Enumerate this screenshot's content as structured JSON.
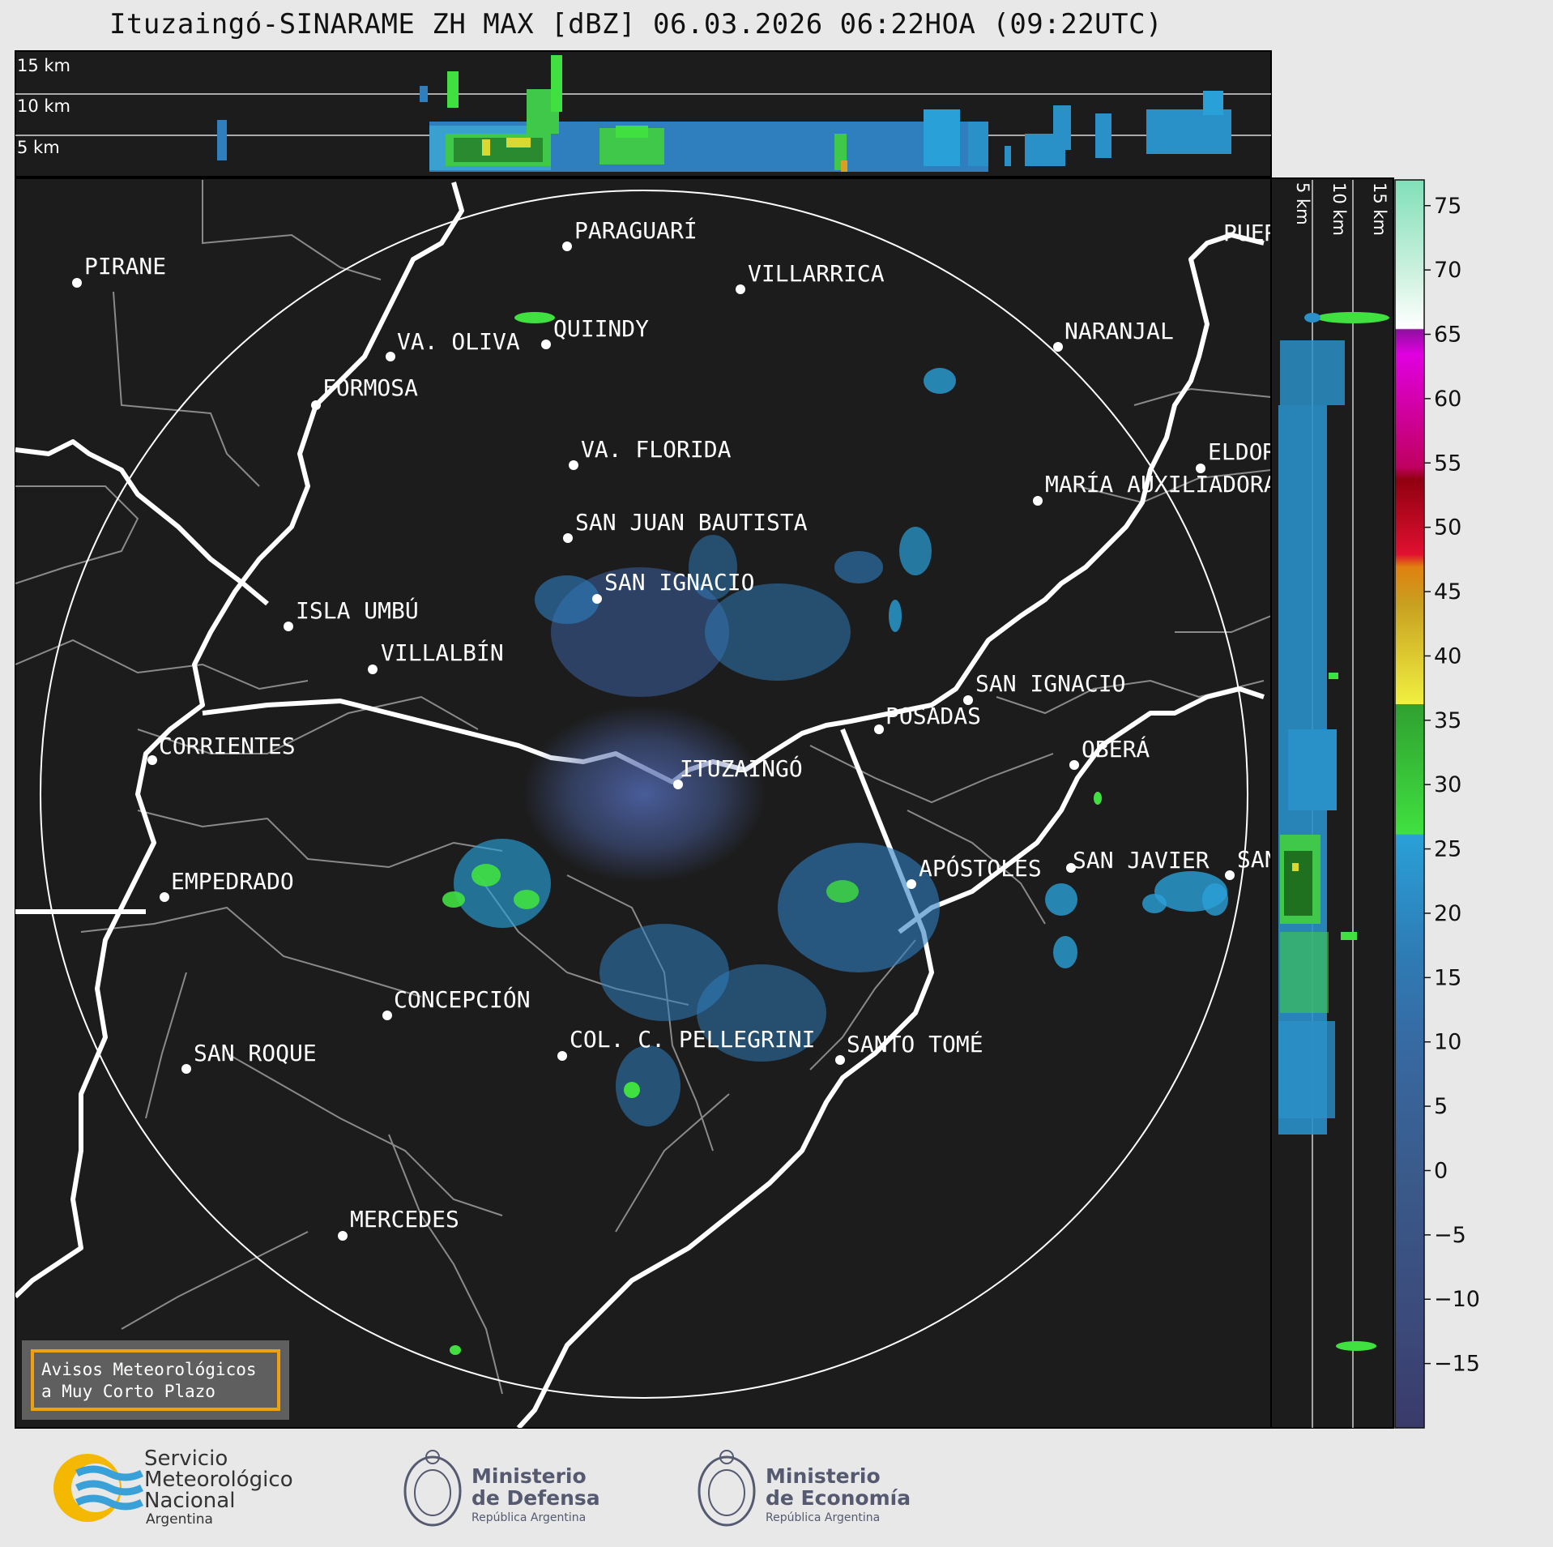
{
  "title": "Ituzaingó-SINARAME ZH MAX [dBZ] 06.03.2026 06:22HOA (09:22UTC)",
  "top_profile": {
    "height_labels": [
      "15 km",
      "10 km",
      "5 km"
    ]
  },
  "side_profile": {
    "height_labels": [
      "5 km",
      "10 km",
      "15 km"
    ]
  },
  "cities": [
    {
      "name": "PIRANE"
    },
    {
      "name": "PARAGUARÍ"
    },
    {
      "name": "VILLARRICA"
    },
    {
      "name": "QUIINDY"
    },
    {
      "name": "VA. OLIVA"
    },
    {
      "name": "NARANJAL"
    },
    {
      "name": "FORMOSA"
    },
    {
      "name": "VA. FLORIDA"
    },
    {
      "name": "ELDORADO"
    },
    {
      "name": "MARÍA AUXILIADORA"
    },
    {
      "name": "SAN JUAN BAUTISTA"
    },
    {
      "name": "SAN IGNACIO"
    },
    {
      "name": "ISLA UMBÚ"
    },
    {
      "name": "VILLALBÍN"
    },
    {
      "name": "SAN IGNACIO"
    },
    {
      "name": "POSADAS"
    },
    {
      "name": "CORRIENTES"
    },
    {
      "name": "ITUZAINGÓ"
    },
    {
      "name": "OBERÁ"
    },
    {
      "name": "APÓSTOLES"
    },
    {
      "name": "SAN JAVIER"
    },
    {
      "name": "SAN"
    },
    {
      "name": "EMPEDRADO"
    },
    {
      "name": "CONCEPCIÓN"
    },
    {
      "name": "COL. C. PELLEGRINI"
    },
    {
      "name": "SANTO TOMÉ"
    },
    {
      "name": "SAN ROQUE"
    },
    {
      "name": "MERCEDES"
    },
    {
      "name": "PUERTO"
    }
  ],
  "warning_box": {
    "line1": "Avisos Meteorológicos",
    "line2": "a Muy Corto Plazo",
    "border_color": "#f0a010"
  },
  "colorbar": {
    "unit": "dBZ",
    "ticks": [
      "75",
      "70",
      "65",
      "60",
      "55",
      "50",
      "45",
      "40",
      "35",
      "30",
      "25",
      "20",
      "15",
      "10",
      "5",
      "0",
      "−5",
      "−10",
      "−15"
    ],
    "range": [
      -20,
      77
    ]
  },
  "colors": {
    "map_bg": "#1c1c1c",
    "page_bg": "#e8e8e8",
    "river": "#ffffff",
    "border": "#8a8a8a"
  },
  "logos": {
    "smn": {
      "l1": "Servicio",
      "l2": "Meteorológico",
      "l3": "Nacional",
      "l4": "Argentina"
    },
    "defensa": {
      "l1": "Ministerio",
      "l2": "de Defensa",
      "l3": "República Argentina"
    },
    "economia": {
      "l1": "Ministerio",
      "l2": "de Economía",
      "l3": "República Argentina"
    }
  }
}
